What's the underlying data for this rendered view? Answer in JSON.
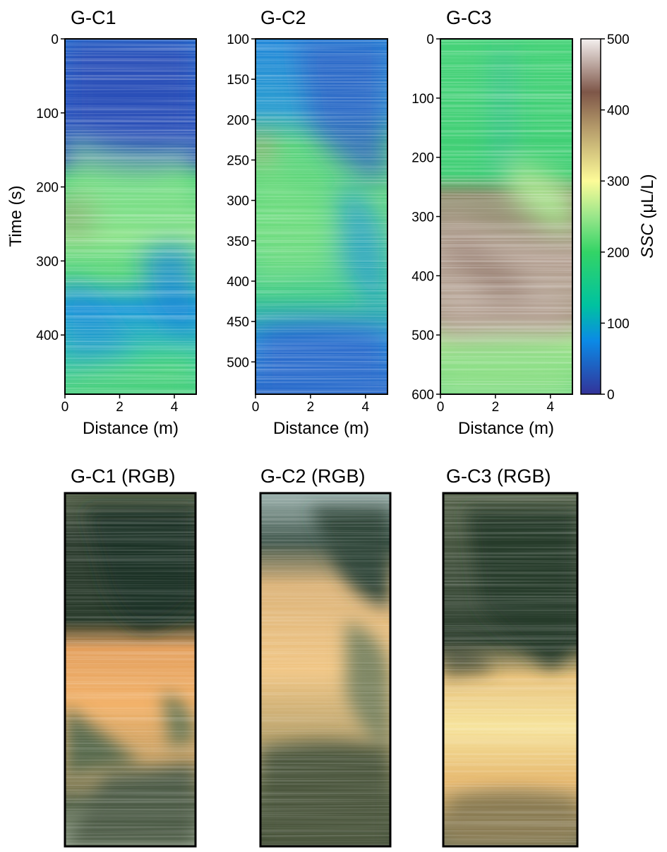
{
  "colors": {
    "dark_blue": "#283a9c",
    "blue": "#1a7fd6",
    "cyan_blue": "#1aa5d8",
    "green": "#2fcf6a",
    "light_green": "#9ee68f",
    "yellow": "#f1ef9a",
    "tan": "#b49a6a",
    "brown": "#6e4a3e",
    "light_pink": "#ece3e2",
    "rgb_dark": "#28392c",
    "rgb_orange": "#f0ae62",
    "rgb_yellow": "#f3e39a",
    "rgb_gray_green": "#8c9a84"
  },
  "chart_data": [
    {
      "type": "heatmap",
      "title": "G-C1",
      "xlabel": "Distance (m)",
      "ylabel": "Time (s)",
      "xlim": [
        0,
        4.8
      ],
      "ylim": [
        0,
        480
      ],
      "y_inverted": true,
      "xticks": [
        0,
        2,
        4
      ],
      "yticks": [
        0,
        100,
        200,
        300,
        400
      ],
      "regions": [
        {
          "t_start": 0,
          "t_end": 180,
          "ssc": 50
        },
        {
          "t_start": 180,
          "t_end": 330,
          "ssc": 190
        },
        {
          "t_start": 330,
          "t_end": 480,
          "ssc": 120
        }
      ]
    },
    {
      "type": "heatmap",
      "title": "G-C2",
      "xlabel": "Distance (m)",
      "ylabel": "",
      "xlim": [
        0,
        4.8
      ],
      "ylim": [
        100,
        540
      ],
      "y_inverted": true,
      "xticks": [
        0,
        2,
        4
      ],
      "yticks": [
        100,
        150,
        200,
        250,
        300,
        350,
        400,
        450,
        500
      ],
      "regions": [
        {
          "t_start": 100,
          "t_end": 200,
          "ssc": 80
        },
        {
          "t_start": 200,
          "t_end": 420,
          "ssc": 180
        },
        {
          "t_start": 420,
          "t_end": 540,
          "ssc": 100
        }
      ]
    },
    {
      "type": "heatmap",
      "title": "G-C3",
      "xlabel": "Distance (m)",
      "ylabel": "",
      "xlim": [
        0,
        4.8
      ],
      "ylim": [
        0,
        600
      ],
      "y_inverted": true,
      "xticks": [
        0,
        2,
        4
      ],
      "yticks": [
        0,
        100,
        200,
        300,
        400,
        500,
        600
      ],
      "regions": [
        {
          "t_start": 0,
          "t_end": 250,
          "ssc": 150
        },
        {
          "t_start": 250,
          "t_end": 480,
          "ssc": 420
        },
        {
          "t_start": 480,
          "t_end": 600,
          "ssc": 240
        }
      ]
    }
  ],
  "colorbar": {
    "label": "SSC (μL/L)",
    "label_var": "SSC",
    "label_unit": " (μL/L)",
    "min": 0,
    "max": 500,
    "ticks": [
      0,
      100,
      200,
      300,
      400,
      500
    ]
  },
  "rgb_panels": [
    {
      "title": "G-C1 (RGB)"
    },
    {
      "title": "G-C2 (RGB)"
    },
    {
      "title": "G-C3 (RGB)"
    }
  ]
}
